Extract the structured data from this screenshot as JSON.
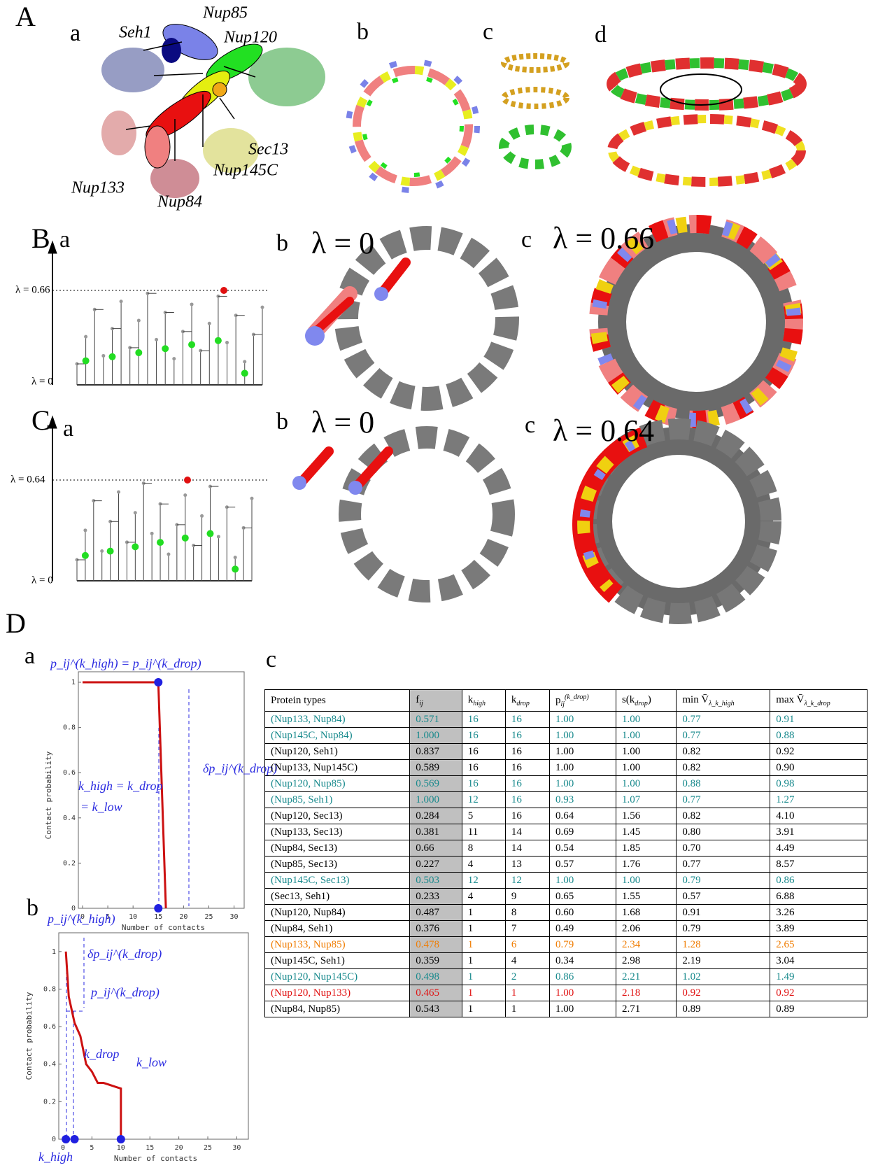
{
  "panel_A": {
    "label": "A",
    "a": {
      "label": "a",
      "proteins": [
        "Nup85",
        "Seh1",
        "Nup120",
        "Sec13",
        "Nup145C",
        "Nup133",
        "Nup84"
      ]
    },
    "b": {
      "label": "b"
    },
    "c": {
      "label": "c"
    },
    "d": {
      "label": "d"
    }
  },
  "panel_B": {
    "label": "B",
    "a": {
      "label": "a",
      "lambda_top": "λ = 0.66",
      "lambda_bottom": "λ = 0"
    },
    "b": {
      "label": "b",
      "title": "λ = 0"
    },
    "c": {
      "label": "c",
      "title": "λ = 0.66"
    }
  },
  "panel_C": {
    "label": "C",
    "a": {
      "label": "a",
      "lambda_top": "λ = 0.64",
      "lambda_bottom": "λ = 0"
    },
    "b": {
      "label": "b",
      "title": "λ = 0"
    },
    "c": {
      "label": "c",
      "title": "λ = 0.64"
    }
  },
  "panel_D": {
    "label": "D",
    "a": {
      "label": "a"
    },
    "b": {
      "label": "b"
    },
    "c": {
      "label": "c"
    }
  },
  "chart_data": [
    {
      "type": "line",
      "x_label": "Number of contacts",
      "y_label": "Contact probability",
      "xlim": [
        0,
        32
      ],
      "ylim": [
        0,
        1
      ],
      "xticks": [
        0,
        5,
        10,
        15,
        20,
        25,
        30
      ],
      "yticks": [
        0,
        0.2,
        0.4,
        0.6,
        0.8,
        1
      ],
      "series": [
        {
          "style": "line",
          "color": "#cc1111",
          "x": [
            0,
            15,
            16.5
          ],
          "values": [
            1,
            1,
            0
          ]
        },
        {
          "style": "points",
          "color": "#2020e0",
          "x": [
            15,
            15
          ],
          "values": [
            1,
            0
          ]
        }
      ],
      "annotations": [
        "p_ij^(k_high) = p_ij^(k_drop)",
        "δp_ij^(k_drop)",
        "k_high = k_drop",
        "= k_low"
      ]
    },
    {
      "type": "line",
      "x_label": "Number of contacts",
      "y_label": "Contact probability",
      "xlim": [
        0,
        32
      ],
      "ylim": [
        0,
        1.1
      ],
      "xticks": [
        0,
        5,
        10,
        15,
        20,
        25,
        30
      ],
      "yticks": [
        0,
        0.2,
        0.4,
        0.6,
        0.8,
        1
      ],
      "series": [
        {
          "style": "line",
          "color": "#cc1111",
          "x": [
            0.5,
            1,
            2,
            3,
            4,
            5,
            6,
            7,
            8,
            9,
            10,
            10
          ],
          "values": [
            1,
            0.76,
            0.62,
            0.55,
            0.4,
            0.36,
            0.3,
            0.3,
            0.29,
            0.28,
            0.27,
            0
          ]
        },
        {
          "style": "points",
          "color": "#2020e0",
          "x": [
            0.5,
            2,
            10
          ],
          "values": [
            0,
            0,
            0
          ]
        }
      ],
      "annotations": [
        "p_ij^(k_high)",
        "δp_ij^(k_drop)",
        "p_ij^(k_drop)",
        "k_drop",
        "k_low",
        "k_high"
      ]
    }
  ],
  "table": {
    "header": [
      {
        "t": "Protein types"
      },
      {
        "t": "f",
        "sub": "ij"
      },
      {
        "t": "k",
        "sub": "high"
      },
      {
        "t": "k",
        "sub": "drop"
      },
      {
        "t": "p",
        "sub": "ij",
        "sup": "(k_drop)"
      },
      {
        "t": "s(k",
        "sub": "drop",
        "after": ")"
      },
      {
        "t": "min V̄",
        "sub": "λ_k_high"
      },
      {
        "t": "max V̄",
        "sub": "λ_k_drop"
      }
    ],
    "row_colors": [
      "#17898c",
      "#17898c",
      "#000000",
      "#000000",
      "#17898c",
      "#17898c",
      "#000000",
      "#000000",
      "#000000",
      "#000000",
      "#17898c",
      "#000000",
      "#000000",
      "#000000",
      "#f07c00",
      "#000000",
      "#17898c",
      "#e01010",
      "#000000"
    ],
    "rows": [
      [
        "(Nup133, Nup84)",
        "0.571",
        "16",
        "16",
        "1.00",
        "1.00",
        "0.77",
        "0.91"
      ],
      [
        "(Nup145C, Nup84)",
        "1.000",
        "16",
        "16",
        "1.00",
        "1.00",
        "0.77",
        "0.88"
      ],
      [
        "(Nup120, Seh1)",
        "0.837",
        "16",
        "16",
        "1.00",
        "1.00",
        "0.82",
        "0.92"
      ],
      [
        "(Nup133, Nup145C)",
        "0.589",
        "16",
        "16",
        "1.00",
        "1.00",
        "0.82",
        "0.90"
      ],
      [
        "(Nup120, Nup85)",
        "0.569",
        "16",
        "16",
        "1.00",
        "1.00",
        "0.88",
        "0.98"
      ],
      [
        "(Nup85, Seh1)",
        "1.000",
        "12",
        "16",
        "0.93",
        "1.07",
        "0.77",
        "1.27"
      ],
      [
        "(Nup120, Sec13)",
        "0.284",
        "5",
        "16",
        "0.64",
        "1.56",
        "0.82",
        "4.10"
      ],
      [
        "(Nup133, Sec13)",
        "0.381",
        "11",
        "14",
        "0.69",
        "1.45",
        "0.80",
        "3.91"
      ],
      [
        "(Nup84, Sec13)",
        "0.66",
        "8",
        "14",
        "0.54",
        "1.85",
        "0.70",
        "4.49"
      ],
      [
        "(Nup85, Sec13)",
        "0.227",
        "4",
        "13",
        "0.57",
        "1.76",
        "0.77",
        "8.57"
      ],
      [
        "(Nup145C, Sec13)",
        "0.503",
        "12",
        "12",
        "1.00",
        "1.00",
        "0.79",
        "0.86"
      ],
      [
        "(Sec13, Seh1)",
        "0.233",
        "4",
        "9",
        "0.65",
        "1.55",
        "0.57",
        "6.88"
      ],
      [
        "(Nup120, Nup84)",
        "0.487",
        "1",
        "8",
        "0.60",
        "1.68",
        "0.91",
        "3.26"
      ],
      [
        "(Nup84, Seh1)",
        "0.376",
        "1",
        "7",
        "0.49",
        "2.06",
        "0.79",
        "3.89"
      ],
      [
        "(Nup133, Nup85)",
        "0.478",
        "1",
        "6",
        "0.79",
        "2.34",
        "1.28",
        "2.65"
      ],
      [
        "(Nup145C, Seh1)",
        "0.359",
        "1",
        "4",
        "0.34",
        "2.98",
        "2.19",
        "3.04"
      ],
      [
        "(Nup120, Nup145C)",
        "0.498",
        "1",
        "2",
        "0.86",
        "2.21",
        "1.02",
        "1.49"
      ],
      [
        "(Nup120, Nup133)",
        "0.465",
        "1",
        "1",
        "1.00",
        "2.18",
        "0.92",
        "0.92"
      ],
      [
        "(Nup84, Nup85)",
        "0.543",
        "1",
        "1",
        "1.00",
        "2.71",
        "0.89",
        "0.89"
      ]
    ]
  }
}
